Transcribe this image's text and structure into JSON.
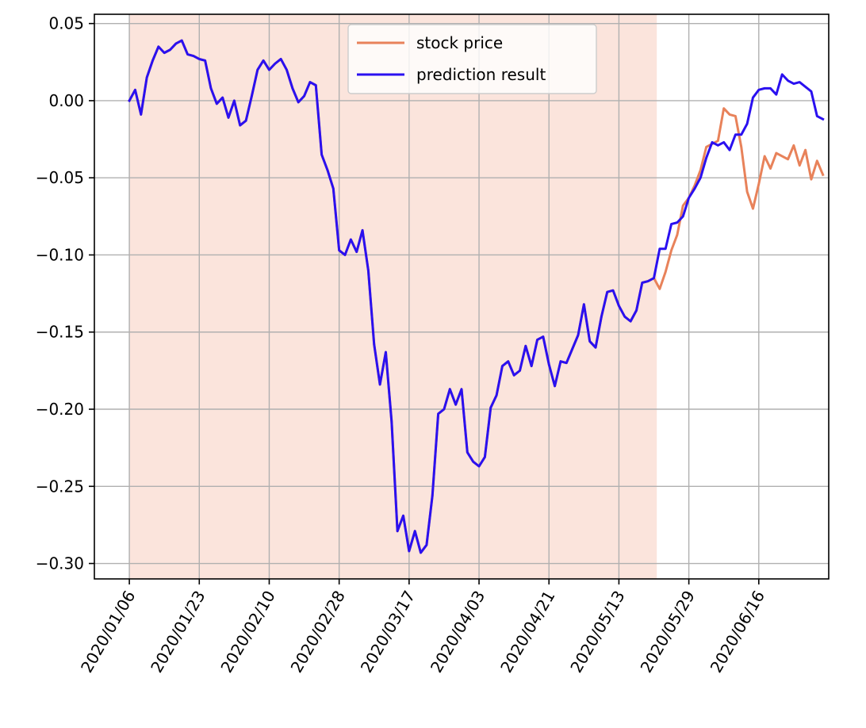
{
  "chart_data": {
    "type": "line",
    "title": "",
    "xlabel": "",
    "ylabel": "",
    "ylim": [
      -0.31,
      0.056
    ],
    "grid": true,
    "legend_position": "top-center",
    "x_tick_labels": [
      "2020/01/06",
      "2020/01/23",
      "2020/02/10",
      "2020/02/28",
      "2020/03/17",
      "2020/04/03",
      "2020/04/21",
      "2020/05/13",
      "2020/05/29",
      "2020/06/16"
    ],
    "y_ticks": [
      0.05,
      0.0,
      -0.05,
      -0.1,
      -0.15,
      -0.2,
      -0.25,
      -0.3
    ],
    "y_tick_labels": [
      "0.05",
      "0.00",
      "−0.05",
      "−0.10",
      "−0.15",
      "−0.20",
      "−0.25",
      "−0.30"
    ],
    "x_range_index": [
      -6,
      120
    ],
    "training_region_index": [
      0,
      90.5
    ],
    "training_region_color": "#fbe4dc",
    "series": [
      {
        "name": "stock price",
        "color": "#e8825a",
        "values": [
          0.0,
          0.007,
          -0.009,
          0.015,
          0.026,
          0.035,
          0.031,
          0.033,
          0.037,
          0.039,
          0.03,
          0.029,
          0.027,
          0.026,
          0.008,
          -0.002,
          0.002,
          -0.011,
          0.0,
          -0.016,
          -0.013,
          0.003,
          0.02,
          0.026,
          0.02,
          0.024,
          0.027,
          0.02,
          0.008,
          -0.001,
          0.003,
          0.012,
          0.01,
          -0.035,
          -0.045,
          -0.057,
          -0.097,
          -0.1,
          -0.09,
          -0.098,
          -0.084,
          -0.11,
          -0.158,
          -0.184,
          -0.163,
          -0.208,
          -0.279,
          -0.269,
          -0.292,
          -0.279,
          -0.293,
          -0.288,
          -0.256,
          -0.203,
          -0.2,
          -0.187,
          -0.197,
          -0.187,
          -0.228,
          -0.234,
          -0.237,
          -0.231,
          -0.199,
          -0.191,
          -0.172,
          -0.169,
          -0.178,
          -0.175,
          -0.159,
          -0.172,
          -0.155,
          -0.153,
          -0.171,
          -0.185,
          -0.169,
          -0.17,
          -0.161,
          -0.152,
          -0.132,
          -0.156,
          -0.16,
          -0.14,
          -0.124,
          -0.123,
          -0.133,
          -0.14,
          -0.143,
          -0.136,
          -0.118,
          -0.117,
          -0.115,
          -0.122,
          -0.111,
          -0.097,
          -0.087,
          -0.068,
          -0.063,
          -0.055,
          -0.045,
          -0.03,
          -0.028,
          -0.026,
          -0.005,
          -0.009,
          -0.01,
          -0.03,
          -0.059,
          -0.07,
          -0.054,
          -0.036,
          -0.044,
          -0.034,
          -0.036,
          -0.038,
          -0.029,
          -0.042,
          -0.032,
          -0.051,
          -0.039,
          -0.048
        ]
      },
      {
        "name": "prediction result",
        "color": "#2a10f0",
        "values": [
          0.0,
          0.007,
          -0.009,
          0.015,
          0.026,
          0.035,
          0.031,
          0.033,
          0.037,
          0.039,
          0.03,
          0.029,
          0.027,
          0.026,
          0.008,
          -0.002,
          0.002,
          -0.011,
          0.0,
          -0.016,
          -0.013,
          0.003,
          0.02,
          0.026,
          0.02,
          0.024,
          0.027,
          0.02,
          0.008,
          -0.001,
          0.003,
          0.012,
          0.01,
          -0.035,
          -0.045,
          -0.057,
          -0.097,
          -0.1,
          -0.09,
          -0.098,
          -0.084,
          -0.11,
          -0.158,
          -0.184,
          -0.163,
          -0.208,
          -0.279,
          -0.269,
          -0.292,
          -0.279,
          -0.293,
          -0.288,
          -0.256,
          -0.203,
          -0.2,
          -0.187,
          -0.197,
          -0.187,
          -0.228,
          -0.234,
          -0.237,
          -0.231,
          -0.199,
          -0.191,
          -0.172,
          -0.169,
          -0.178,
          -0.175,
          -0.159,
          -0.172,
          -0.155,
          -0.153,
          -0.171,
          -0.185,
          -0.169,
          -0.17,
          -0.161,
          -0.152,
          -0.132,
          -0.156,
          -0.16,
          -0.14,
          -0.124,
          -0.123,
          -0.133,
          -0.14,
          -0.143,
          -0.136,
          -0.118,
          -0.117,
          -0.115,
          -0.096,
          -0.096,
          -0.08,
          -0.079,
          -0.075,
          -0.063,
          -0.057,
          -0.05,
          -0.037,
          -0.027,
          -0.029,
          -0.027,
          -0.032,
          -0.022,
          -0.022,
          -0.015,
          0.002,
          0.007,
          0.008,
          0.008,
          0.004,
          0.017,
          0.013,
          0.011,
          0.012,
          0.009,
          0.006,
          -0.01,
          -0.012
        ]
      }
    ]
  }
}
